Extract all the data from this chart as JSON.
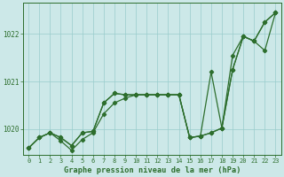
{
  "xlabel": "Graphe pression niveau de la mer (hPa)",
  "background_color": "#cce8e8",
  "grid_color": "#99cccc",
  "line_color": "#2d6e2d",
  "ylim": [
    1019.45,
    1022.65
  ],
  "xlim": [
    -0.5,
    23.5
  ],
  "yticks": [
    1020,
    1021,
    1022
  ],
  "xticks": [
    0,
    1,
    2,
    3,
    4,
    5,
    6,
    7,
    8,
    9,
    10,
    11,
    12,
    13,
    14,
    15,
    16,
    17,
    18,
    19,
    20,
    21,
    22,
    23
  ],
  "series1": [
    1019.6,
    1019.82,
    1019.92,
    1019.82,
    1019.65,
    1019.92,
    1019.95,
    1020.55,
    1020.75,
    1020.72,
    1020.72,
    1020.72,
    1020.72,
    1020.72,
    1020.72,
    1019.82,
    1019.85,
    1021.2,
    1020.02,
    1021.55,
    1021.95,
    1021.85,
    1021.65,
    1022.45
  ],
  "series2": [
    1019.6,
    1019.82,
    1019.92,
    1019.75,
    1019.55,
    1019.78,
    1019.92,
    1020.32,
    1020.55,
    1020.65,
    1020.72,
    1020.72,
    1020.72,
    1020.72,
    1020.72,
    1019.82,
    1019.85,
    1019.92,
    1020.02,
    1021.25,
    1021.95,
    1021.85,
    1022.25,
    1022.45
  ],
  "series3": [
    1019.6,
    1019.82,
    1019.92,
    1019.82,
    1019.65,
    1019.92,
    1019.95,
    1020.55,
    1020.75,
    1020.72,
    1020.72,
    1020.72,
    1020.72,
    1020.72,
    1020.72,
    1019.82,
    1019.85,
    1019.92,
    1020.02,
    1021.25,
    1021.95,
    1021.85,
    1022.25,
    1022.45
  ]
}
